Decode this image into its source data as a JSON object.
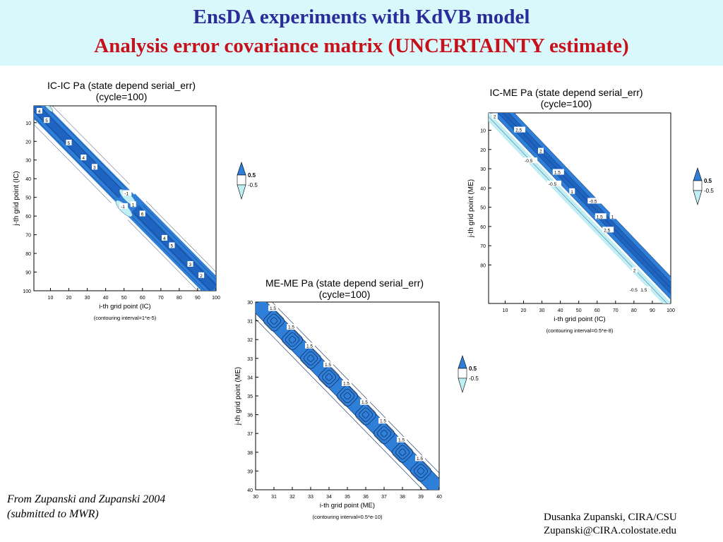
{
  "header": {
    "title_line1": "EnsDA experiments with KdVB model",
    "title_line2": "Analysis error covariance matrix (UNCERTAINTY estimate)"
  },
  "colors": {
    "header_bg": "#d8f8fb",
    "title1": "#2b2b9a",
    "title2": "#c8101a",
    "positive_fill": "#2f7fd9",
    "negative_fill": "#bfeff5"
  },
  "credits": {
    "left_line1": "From Zupanski and Zupanski 2004",
    "left_line2": "(submitted to MWR)",
    "right_line1": "Dusanka Zupanski,  CIRA/CSU",
    "right_line2": "Zupanski@CIRA.colostate.edu"
  },
  "chart_data": [
    {
      "type": "heatmap",
      "title": "IC-IC Pa  (state depend serial_err)",
      "subtitle": "(cycle=100)",
      "xlabel": "i-th grid point (IC)",
      "ylabel": "j-th grid point (IC)",
      "note": "(contouring interval=1*e-5)",
      "xlim": [
        1,
        100
      ],
      "ylim": [
        1,
        100
      ],
      "xticks": [
        10,
        20,
        30,
        40,
        50,
        60,
        70,
        80,
        90,
        100
      ],
      "yticks": [
        10,
        20,
        30,
        40,
        50,
        60,
        70,
        80,
        90,
        100
      ],
      "legend": [
        "0.5",
        "-0.5"
      ],
      "contour_labels": [
        {
          "x": 4,
          "y": 4,
          "text": "4"
        },
        {
          "x": 8,
          "y": 9,
          "text": "5"
        },
        {
          "x": 20,
          "y": 21,
          "text": "5"
        },
        {
          "x": 28,
          "y": 29,
          "text": "4"
        },
        {
          "x": 34,
          "y": 34,
          "text": "3"
        },
        {
          "x": 51,
          "y": 48,
          "text": "-1"
        },
        {
          "x": 49,
          "y": 55,
          "text": "-1"
        },
        {
          "x": 55,
          "y": 54,
          "text": "1"
        },
        {
          "x": 60,
          "y": 59,
          "text": "6"
        },
        {
          "x": 72,
          "y": 72,
          "text": "4"
        },
        {
          "x": 76,
          "y": 76,
          "text": "5"
        },
        {
          "x": 86,
          "y": 86,
          "text": "3"
        },
        {
          "x": 92,
          "y": 92,
          "text": "2"
        }
      ],
      "negative_regions": [
        {
          "x": 52,
          "y": 50,
          "rx": 6,
          "ry": 2
        },
        {
          "x": 50,
          "y": 56,
          "rx": 6,
          "ry": 2
        },
        {
          "x": 9,
          "y": 2,
          "rx": 3,
          "ry": 1
        }
      ]
    },
    {
      "type": "heatmap",
      "title": "IC-ME Pa  (state depend serial_err)",
      "subtitle": "(cycle=100)",
      "xlabel": "i-th grid point (IC)",
      "ylabel": "j-th grid point (ME)",
      "note": "(contouring interval=0.5*e-8)",
      "xlim": [
        1,
        100
      ],
      "ylim": [
        1,
        100
      ],
      "xticks": [
        10,
        20,
        30,
        40,
        50,
        60,
        70,
        80,
        90,
        100
      ],
      "yticks": [
        10,
        20,
        30,
        40,
        50,
        60,
        70,
        80
      ],
      "legend": [
        "0.5",
        "-0.5"
      ],
      "contour_labels": [
        {
          "x": 4,
          "y": 3,
          "text": "2"
        },
        {
          "x": 16,
          "y": 10,
          "text": "2.5"
        },
        {
          "x": 29,
          "y": 21,
          "text": "2"
        },
        {
          "x": 21,
          "y": 26,
          "text": "-0.5"
        },
        {
          "x": 37,
          "y": 32,
          "text": "1.5"
        },
        {
          "x": 34,
          "y": 38,
          "text": "-0.5"
        },
        {
          "x": 46,
          "y": 42,
          "text": "1"
        },
        {
          "x": 56,
          "y": 47,
          "text": "-0.5"
        },
        {
          "x": 60,
          "y": 55,
          "text": "1.5"
        },
        {
          "x": 64,
          "y": 62,
          "text": "2.5"
        },
        {
          "x": 68,
          "y": 55,
          "text": "1"
        },
        {
          "x": 80,
          "y": 83,
          "text": "2"
        },
        {
          "x": 78,
          "y": 93,
          "text": "-0.5"
        },
        {
          "x": 84,
          "y": 93,
          "text": "1.5"
        }
      ]
    },
    {
      "type": "heatmap",
      "title": "ME-ME Pa  (state depend serial_err)",
      "subtitle": "(cycle=100)",
      "xlabel": "i-th grid point (ME)",
      "ylabel": "j-th grid point (ME)",
      "note": "(contouring interval=0.5*e-10)",
      "xlim": [
        30,
        40
      ],
      "ylim": [
        30,
        40
      ],
      "xticks": [
        30,
        31,
        32,
        33,
        34,
        35,
        36,
        37,
        38,
        39,
        40
      ],
      "yticks": [
        30,
        31,
        32,
        33,
        34,
        35,
        36,
        37,
        38,
        39,
        40
      ],
      "legend": [
        "0.5",
        "-0.5"
      ],
      "peaks": [
        31,
        32,
        33,
        34,
        35,
        36,
        37,
        38,
        39
      ],
      "peak_label": "1.5"
    }
  ]
}
